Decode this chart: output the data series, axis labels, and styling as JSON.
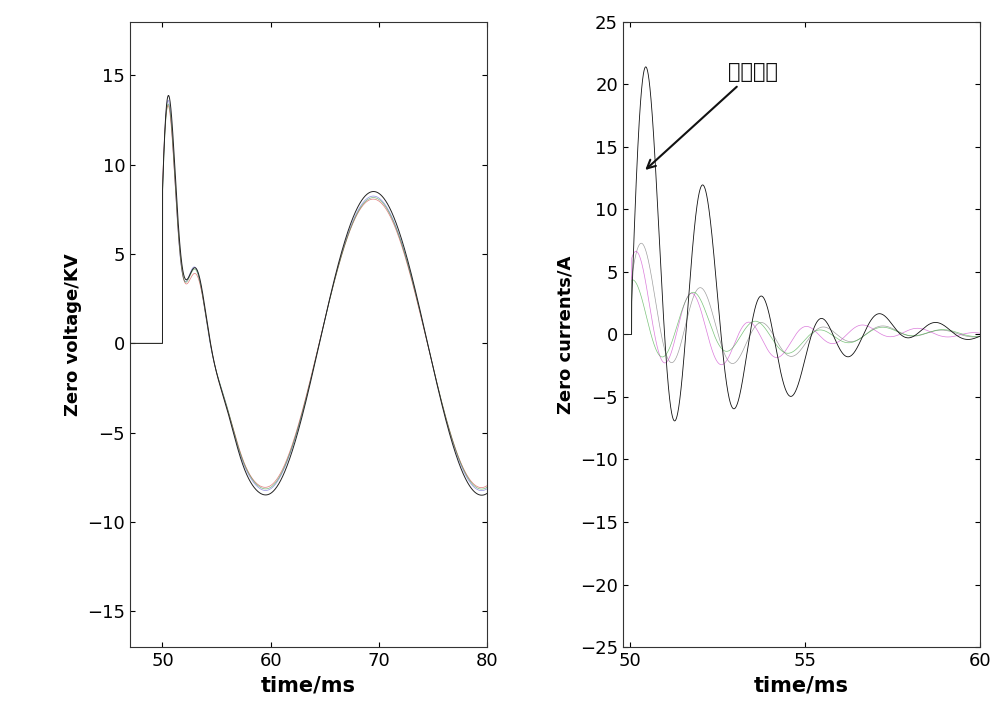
{
  "left_xlim": [
    47,
    80
  ],
  "left_ylim": [
    -17,
    18
  ],
  "left_xlabel": "time/ms",
  "left_ylabel": "Zero voltage/KV",
  "left_yticks": [
    -15,
    -10,
    -5,
    0,
    5,
    10,
    15
  ],
  "left_xticks": [
    50,
    60,
    70,
    80
  ],
  "right_xlim": [
    49.8,
    60
  ],
  "right_ylim": [
    -25,
    25
  ],
  "right_xlabel": "time/ms",
  "right_ylabel": "Zero currents/A",
  "right_yticks": [
    -25,
    -20,
    -15,
    -10,
    -5,
    0,
    5,
    10,
    15,
    20,
    25
  ],
  "right_xticks": [
    50,
    55,
    60
  ],
  "annotation_text": "故障线路",
  "bg_color": "#ffffff"
}
